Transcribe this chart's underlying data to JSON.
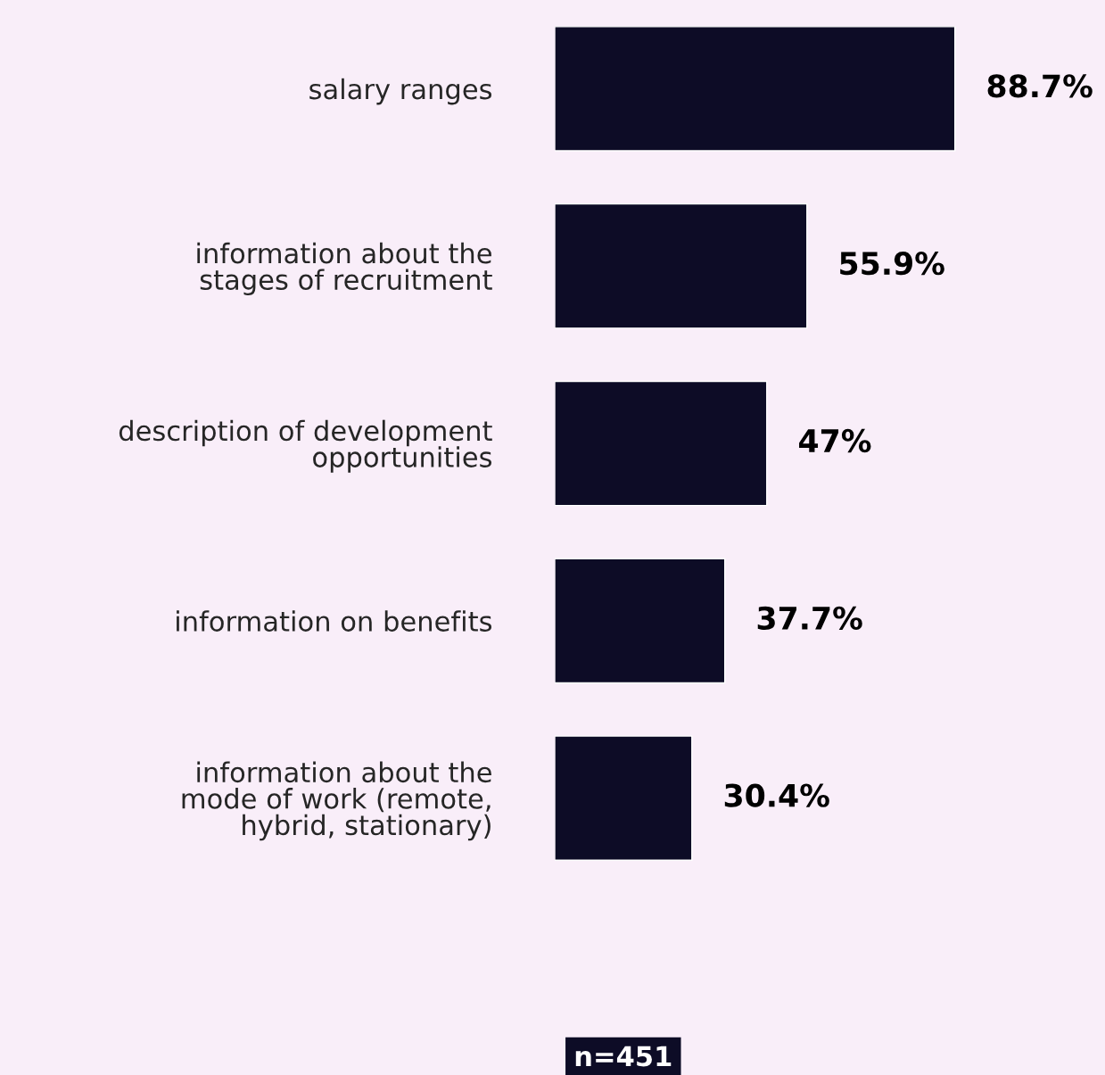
{
  "chart_data": {
    "type": "bar",
    "orientation": "horizontal",
    "categories": [
      "salary ranges",
      "information about the\nstages of recruitment",
      "description of development\nopportunities",
      "information on benefits",
      "information about the\nmode of work (remote,\nhybrid, stationary)"
    ],
    "values": [
      88.7,
      55.9,
      47,
      37.7,
      30.4
    ],
    "color": "#0d0c26",
    "value_labels": [
      "88.7%",
      "55.9%",
      "47%",
      "37.7%",
      "30.4%"
    ],
    "annotations": [
      "n=451"
    ],
    "grid": false,
    "legend": false
  }
}
